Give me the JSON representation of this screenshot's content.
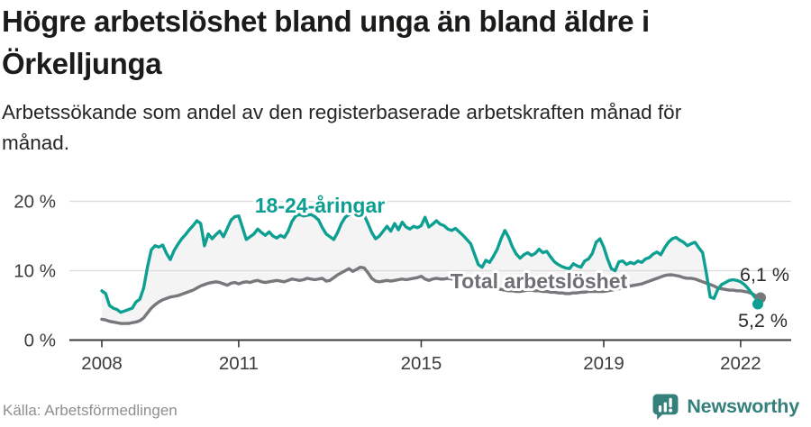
{
  "header": {
    "title": "Högre arbetslöshet bland unga än bland äldre i Örkelljunga",
    "subtitle": "Arbetssökande som andel av den registerbaserade arbetskraften månad för månad."
  },
  "footer": {
    "source": "Källa: Arbetsförmedlingen",
    "brand": "Newsworthy",
    "brand_color": "#35807b"
  },
  "chart_data": {
    "type": "line",
    "frequency": "monthly",
    "unit": "%",
    "band_fill_color": "#f4f4f4",
    "grid_color": "#dcdcdc",
    "axis_color": "#3a3a3a",
    "y_ticks": [
      {
        "label": "0 %",
        "value": 0
      },
      {
        "label": "10 %",
        "value": 10
      },
      {
        "label": "20 %",
        "value": 20
      }
    ],
    "ylim": [
      0,
      21.5
    ],
    "x_ticks": [
      {
        "label": "2008",
        "month_index": 0
      },
      {
        "label": "2011",
        "month_index": 36
      },
      {
        "label": "2015",
        "month_index": 84
      },
      {
        "label": "2019",
        "month_index": 132
      },
      {
        "label": "2022",
        "month_index": 168
      }
    ],
    "x_start": "2008-01",
    "x_end": "2022-06",
    "series": [
      {
        "name": "Total arbetslöshet",
        "color": "#77777c",
        "label_color": "#6f6f74",
        "end_label": "6,1 %",
        "end_value": 6.1,
        "values": [
          3.0,
          2.9,
          2.7,
          2.6,
          2.5,
          2.4,
          2.4,
          2.4,
          2.5,
          2.6,
          2.8,
          3.2,
          3.9,
          4.6,
          5.1,
          5.5,
          5.8,
          6.0,
          6.2,
          6.3,
          6.4,
          6.6,
          6.8,
          7.0,
          7.2,
          7.5,
          7.8,
          8.0,
          8.2,
          8.3,
          8.4,
          8.3,
          8.1,
          7.9,
          8.2,
          8.3,
          8.1,
          8.3,
          8.4,
          8.3,
          8.5,
          8.6,
          8.4,
          8.3,
          8.4,
          8.5,
          8.6,
          8.5,
          8.4,
          8.6,
          8.8,
          8.7,
          8.6,
          8.7,
          8.9,
          8.8,
          8.7,
          8.8,
          8.9,
          8.5,
          8.6,
          9.0,
          9.4,
          9.7,
          10.0,
          10.3,
          9.9,
          10.2,
          10.5,
          10.4,
          9.7,
          8.9,
          8.5,
          8.4,
          8.5,
          8.6,
          8.5,
          8.6,
          8.7,
          8.8,
          8.7,
          8.8,
          8.9,
          9.0,
          9.2,
          8.8,
          8.6,
          8.8,
          8.9,
          8.8,
          8.8,
          8.9,
          8.8,
          8.7,
          8.7,
          8.6,
          8.5,
          8.4,
          8.3,
          8.1,
          8.0,
          7.9,
          7.7,
          7.6,
          7.4,
          7.3,
          7.2,
          7.1,
          7.1,
          7.0,
          7.0,
          7.1,
          7.2,
          7.2,
          7.1,
          7.1,
          7.0,
          7.0,
          6.9,
          6.9,
          6.8,
          6.8,
          6.7,
          6.7,
          6.8,
          6.8,
          6.9,
          6.9,
          7.0,
          7.0,
          7.0,
          7.0,
          7.0,
          7.1,
          7.2,
          7.3,
          7.4,
          7.6,
          7.7,
          7.8,
          7.9,
          8.0,
          8.1,
          8.3,
          8.5,
          8.7,
          8.9,
          9.1,
          9.3,
          9.4,
          9.4,
          9.3,
          9.2,
          9.0,
          8.9,
          8.9,
          8.8,
          8.6,
          8.4,
          8.2,
          8.0,
          7.8,
          7.5,
          7.4,
          7.3,
          7.2,
          7.2,
          7.1,
          7.1,
          7.0,
          6.9,
          6.7,
          6.4,
          6.1
        ]
      },
      {
        "name": "18-24-åringar",
        "color": "#0da092",
        "label_color": "#0da092",
        "end_label": "5,2 %",
        "end_value": 5.2,
        "values": [
          7.1,
          6.7,
          5.0,
          4.6,
          4.4,
          4.0,
          4.2,
          4.4,
          4.6,
          5.5,
          5.9,
          7.5,
          10.5,
          13.0,
          13.6,
          13.4,
          13.7,
          12.5,
          11.6,
          12.9,
          13.8,
          14.6,
          15.2,
          15.9,
          16.5,
          17.2,
          16.8,
          13.6,
          15.3,
          14.6,
          15.2,
          15.7,
          14.9,
          16.1,
          17.3,
          17.8,
          17.9,
          16.2,
          14.5,
          14.9,
          15.3,
          16.0,
          15.5,
          15.1,
          15.6,
          15.0,
          14.7,
          15.1,
          14.8,
          15.7,
          17.1,
          17.9,
          18.1,
          17.9,
          18.0,
          18.1,
          17.8,
          17.3,
          16.2,
          15.3,
          14.9,
          14.5,
          15.5,
          16.8,
          17.7,
          18.1,
          18.3,
          18.5,
          18.3,
          18.0,
          16.8,
          15.5,
          14.6,
          15.0,
          15.7,
          16.4,
          15.7,
          16.8,
          15.9,
          17.0,
          16.3,
          16.0,
          16.4,
          16.2,
          16.5,
          17.7,
          16.3,
          16.7,
          17.2,
          16.7,
          16.5,
          16.0,
          15.8,
          16.1,
          15.6,
          15.1,
          14.5,
          13.9,
          12.4,
          10.9,
          10.5,
          11.5,
          11.2,
          12.1,
          13.1,
          14.6,
          15.8,
          14.8,
          13.4,
          12.4,
          11.8,
          12.3,
          12.6,
          12.2,
          12.5,
          13.1,
          12.6,
          12.8,
          12.0,
          11.3,
          10.9,
          10.6,
          10.4,
          10.3,
          11.0,
          10.7,
          10.5,
          11.4,
          11.7,
          12.5,
          14.1,
          14.6,
          13.4,
          11.7,
          10.3,
          10.0,
          11.3,
          11.4,
          10.9,
          11.2,
          11.0,
          11.4,
          11.2,
          11.7,
          11.9,
          12.4,
          12.7,
          12.3,
          13.3,
          14.1,
          14.6,
          14.8,
          14.4,
          14.1,
          13.6,
          13.9,
          14.1,
          13.3,
          12.6,
          9.6,
          6.2,
          6.0,
          7.3,
          8.0,
          8.3,
          8.6,
          8.7,
          8.6,
          8.4,
          8.0,
          7.4,
          6.7,
          6.0,
          5.2
        ]
      }
    ]
  }
}
